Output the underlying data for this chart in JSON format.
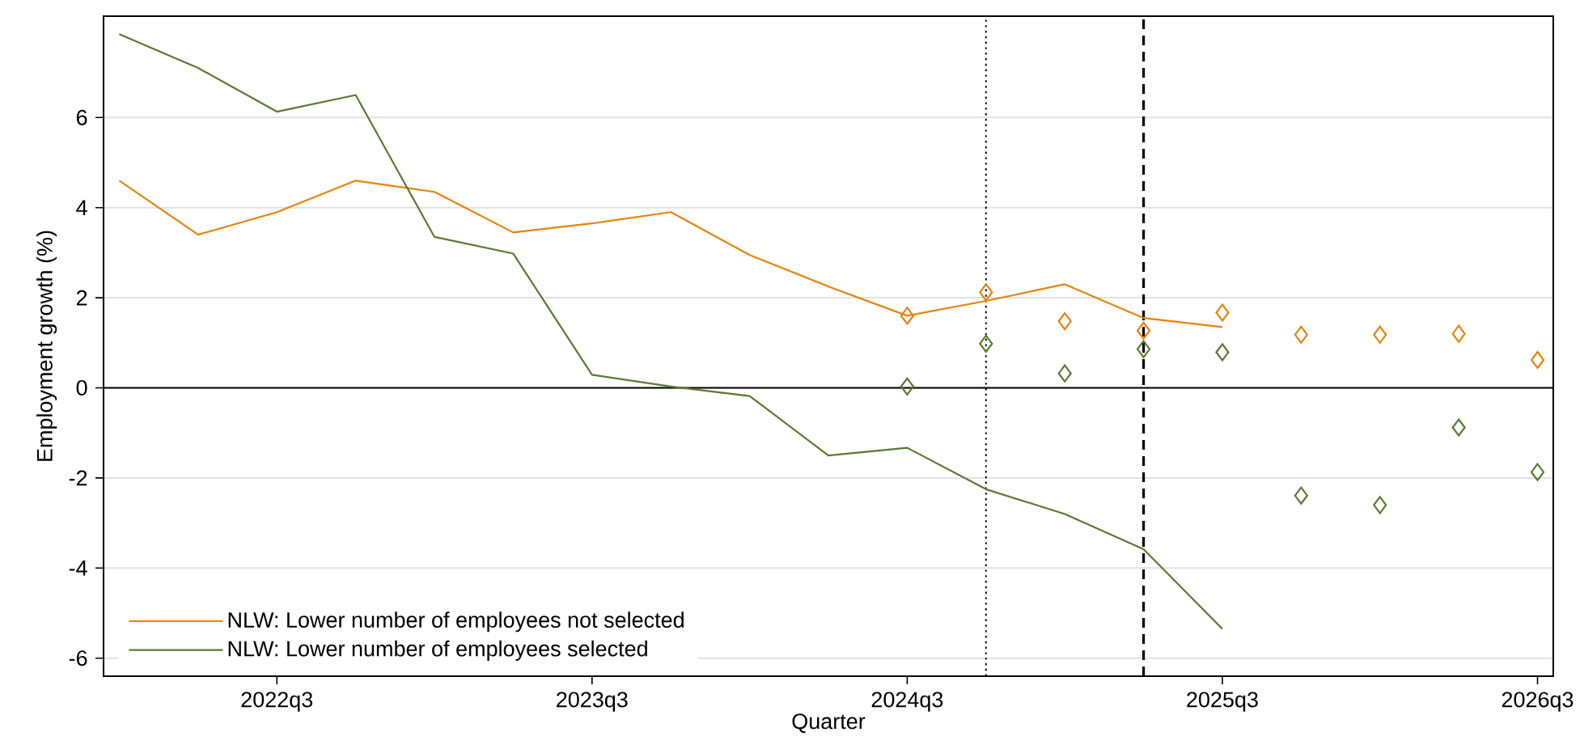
{
  "chart_data": {
    "type": "line",
    "xlabel": "Quarter",
    "ylabel": "Employment growth (%)",
    "categories": [
      null,
      null,
      "2022q3",
      null,
      null,
      null,
      "2023q3",
      null,
      null,
      null,
      "2024q3",
      null,
      null,
      null,
      "2025q3",
      null,
      null,
      null,
      "2026q3"
    ],
    "ylim": [
      -6.4,
      8.25
    ],
    "yticks": [
      -6,
      -4,
      -2,
      0,
      2,
      4,
      6
    ],
    "grid": "y",
    "legend": "bottom left",
    "series": [
      {
        "name": "NLW: Lower number of employees not selected",
        "color": "#e8830c",
        "line_style": "solid",
        "values": [
          4.6,
          3.4,
          3.9,
          4.6,
          4.35,
          3.45,
          3.65,
          3.9,
          2.95,
          2.25,
          1.6,
          1.93,
          2.3,
          1.55,
          1.35,
          null,
          null,
          null,
          null
        ]
      },
      {
        "name": "NLW: Lower number of employees selected",
        "color": "#5a7a32",
        "line_style": "solid",
        "values": [
          7.85,
          7.1,
          6.13,
          6.5,
          3.35,
          2.98,
          0.29,
          0.03,
          -0.18,
          -1.5,
          -1.33,
          -2.25,
          -2.8,
          -3.58,
          -5.35,
          null,
          null,
          null,
          null
        ]
      },
      {
        "color": "#e8830c",
        "type": "scatter",
        "marker": "diamond",
        "values": [
          null,
          null,
          null,
          null,
          null,
          null,
          null,
          null,
          null,
          null,
          1.6,
          2.12,
          1.48,
          1.27,
          1.67,
          1.18,
          1.18,
          1.2,
          0.62
        ]
      },
      {
        "color": "#5a7a32",
        "type": "scatter",
        "marker": "diamond",
        "values": [
          null,
          null,
          null,
          null,
          null,
          null,
          null,
          null,
          null,
          null,
          0.03,
          0.98,
          0.32,
          0.86,
          0.79,
          -2.39,
          -2.6,
          -0.88,
          -1.87
        ]
      }
    ],
    "ref_lines": [
      {
        "axis": "y",
        "value": 0,
        "color": "#000000",
        "line_style": "solid"
      }
    ]
  }
}
